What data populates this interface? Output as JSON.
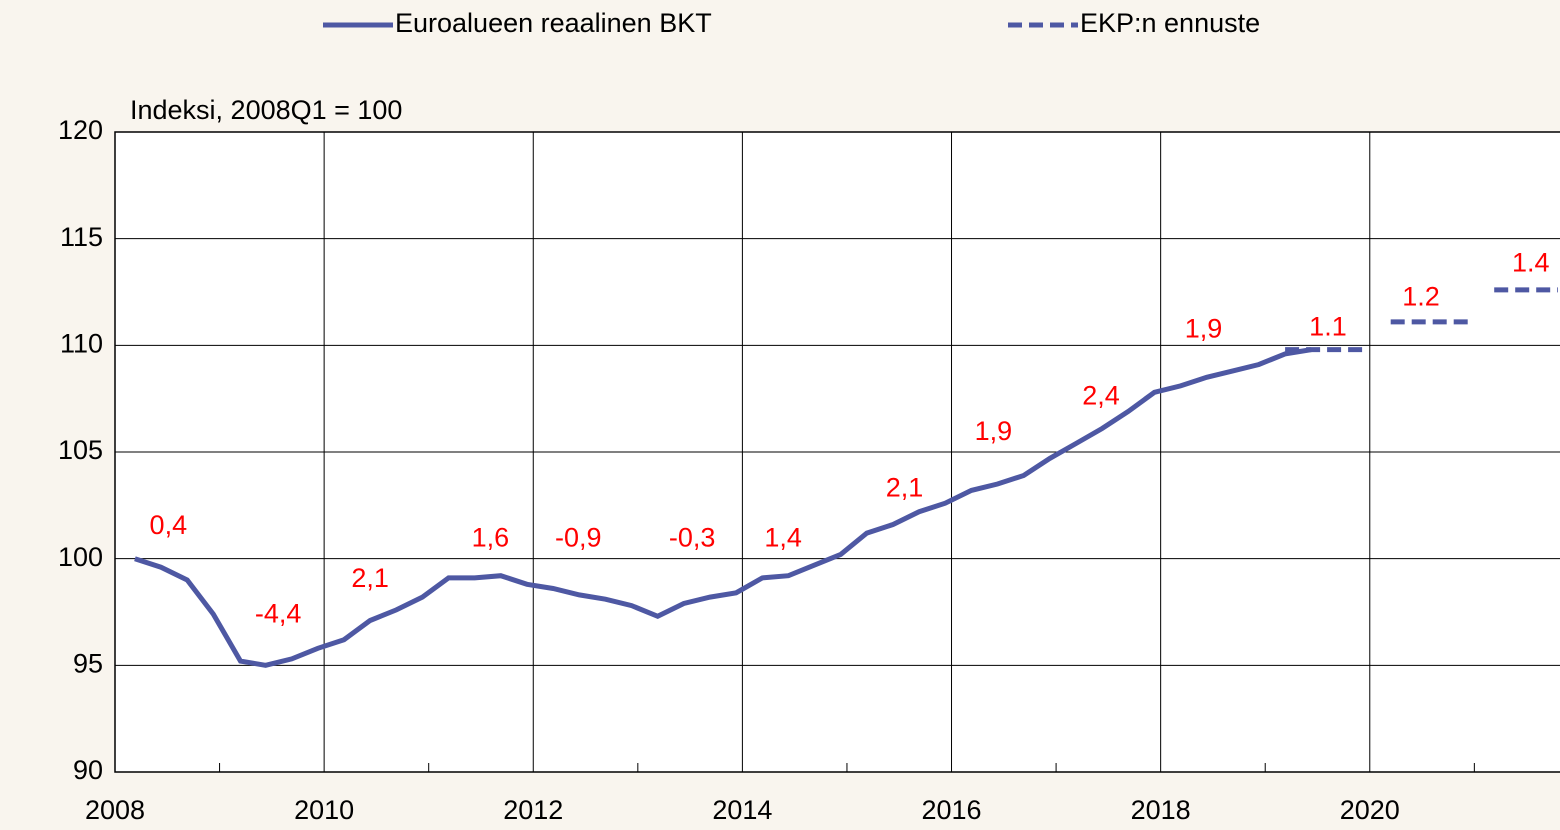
{
  "chart_data": {
    "type": "line",
    "y_axis_label": "Indeksi, 2008Q1 = 100",
    "xlim": [
      2008,
      2021.8
    ],
    "xticks": [
      2008,
      2010,
      2012,
      2014,
      2016,
      2018,
      2020
    ],
    "xminor_ticks": [
      2009,
      2011,
      2013,
      2015,
      2017,
      2019,
      2021
    ],
    "ylim": [
      90,
      120
    ],
    "yticks": [
      90,
      95,
      100,
      105,
      110,
      115,
      120
    ],
    "grid": true,
    "series": [
      {
        "name": "Euroalueen reaalinen BKT",
        "color": "#4e58a3",
        "dashed": false,
        "x": [
          2008.19,
          2008.44,
          2008.69,
          2008.94,
          2009.2,
          2009.44,
          2009.69,
          2009.94,
          2010.19,
          2010.44,
          2010.69,
          2010.94,
          2011.19,
          2011.44,
          2011.69,
          2011.94,
          2012.19,
          2012.44,
          2012.69,
          2012.94,
          2013.19,
          2013.44,
          2013.69,
          2013.94,
          2014.19,
          2014.44,
          2014.69,
          2014.94,
          2015.19,
          2015.44,
          2015.69,
          2015.94,
          2016.19,
          2016.44,
          2016.69,
          2016.94,
          2017.19,
          2017.44,
          2017.69,
          2017.94,
          2018.19,
          2018.44,
          2018.69,
          2018.94,
          2019.19,
          2019.44
        ],
        "values": [
          100.0,
          99.6,
          99.0,
          97.4,
          95.2,
          95.0,
          95.3,
          95.8,
          96.2,
          97.1,
          97.6,
          98.2,
          99.1,
          99.1,
          99.2,
          98.8,
          98.6,
          98.3,
          98.1,
          97.8,
          97.3,
          97.9,
          98.2,
          98.4,
          99.1,
          99.2,
          99.7,
          100.2,
          101.2,
          101.6,
          102.2,
          102.6,
          103.2,
          103.5,
          103.9,
          104.7,
          105.4,
          106.1,
          106.9,
          107.8,
          108.1,
          108.5,
          108.8,
          109.1,
          109.6,
          109.8
        ]
      },
      {
        "name": "EKP:n ennuste",
        "color": "#4e58a3",
        "dashed": true,
        "x": [
          2019.19,
          2019.97,
          2020.0,
          2020.2,
          2020.99,
          2021.0,
          2021.19,
          2021.8
        ],
        "values": [
          109.8,
          109.8,
          null,
          111.1,
          111.1,
          null,
          112.6,
          112.6
        ]
      }
    ],
    "annotations": [
      {
        "text": "0,4",
        "x": 2008.51,
        "y": 101.5
      },
      {
        "text": "-4,4",
        "x": 2009.56,
        "y": 97.35
      },
      {
        "text": "2,1",
        "x": 2010.44,
        "y": 99.0
      },
      {
        "text": "1,6",
        "x": 2011.59,
        "y": 100.9
      },
      {
        "text": "-0,9",
        "x": 2012.43,
        "y": 100.9
      },
      {
        "text": "-0,3",
        "x": 2013.52,
        "y": 100.9
      },
      {
        "text": "1,4",
        "x": 2014.39,
        "y": 100.9
      },
      {
        "text": "2,1",
        "x": 2015.55,
        "y": 103.25
      },
      {
        "text": "1,9",
        "x": 2016.4,
        "y": 105.9
      },
      {
        "text": "2,4",
        "x": 2017.43,
        "y": 107.55
      },
      {
        "text": "1,9",
        "x": 2018.41,
        "y": 110.7
      },
      {
        "text": "1.1",
        "x": 2019.6,
        "y": 110.8
      },
      {
        "text": "1.2",
        "x": 2020.49,
        "y": 112.2
      },
      {
        "text": "1.4",
        "x": 2021.54,
        "y": 113.8
      }
    ]
  }
}
